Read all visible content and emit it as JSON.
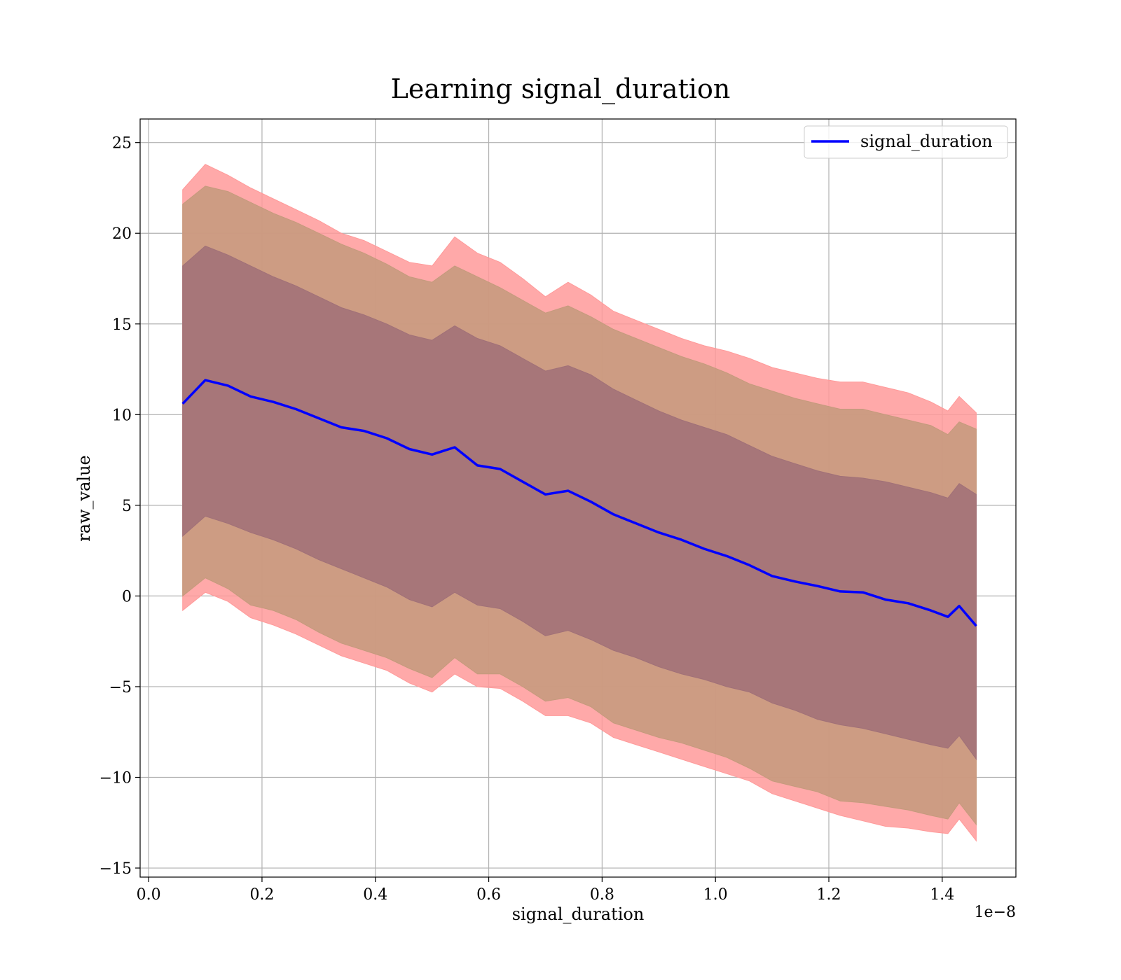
{
  "chart_data": {
    "type": "line",
    "title": "Learning signal_duration",
    "xlabel": "signal_duration",
    "ylabel": "raw_value",
    "x_offset_label": "1e−8",
    "xlim": [
      -1.5e-10,
      1.53e-08
    ],
    "ylim": [
      -15.5,
      26.3
    ],
    "x_ticks": [
      {
        "value": 0.0,
        "label": "0.0"
      },
      {
        "value": 2e-09,
        "label": "0.2"
      },
      {
        "value": 4e-09,
        "label": "0.4"
      },
      {
        "value": 6e-09,
        "label": "0.6"
      },
      {
        "value": 8e-09,
        "label": "0.8"
      },
      {
        "value": 1e-08,
        "label": "1.0"
      },
      {
        "value": 1.2e-08,
        "label": "1.2"
      },
      {
        "value": 1.4e-08,
        "label": "1.4"
      }
    ],
    "y_ticks": [
      {
        "value": 25,
        "label": "25"
      },
      {
        "value": 20,
        "label": "20"
      },
      {
        "value": 15,
        "label": "15"
      },
      {
        "value": 10,
        "label": "10"
      },
      {
        "value": 5,
        "label": "5"
      },
      {
        "value": 0,
        "label": "0"
      },
      {
        "value": -5,
        "label": "−5"
      },
      {
        "value": -10,
        "label": "−10"
      },
      {
        "value": -15,
        "label": "−15"
      }
    ],
    "grid": true,
    "legend": {
      "position": "top-right",
      "entries": [
        "signal_duration"
      ]
    },
    "colors": {
      "line": "#0000ff",
      "band_outer": "#ff9a9a",
      "band_middle": "#c49a7c",
      "band_inner": "#a07078"
    },
    "series": [
      {
        "name": "signal_duration",
        "x": [
          6e-10,
          1e-09,
          1.4e-09,
          1.8e-09,
          2.2e-09,
          2.6e-09,
          3e-09,
          3.4e-09,
          3.8e-09,
          4.2e-09,
          4.6e-09,
          5e-09,
          5.4e-09,
          5.8e-09,
          6.2e-09,
          6.6e-09,
          7e-09,
          7.4e-09,
          7.8e-09,
          8.2e-09,
          8.6e-09,
          9e-09,
          9.4e-09,
          9.8e-09,
          1.02e-08,
          1.06e-08,
          1.1e-08,
          1.14e-08,
          1.18e-08,
          1.22e-08,
          1.26e-08,
          1.3e-08,
          1.34e-08,
          1.38e-08,
          1.41e-08,
          1.43e-08,
          1.46e-08
        ],
        "y": [
          10.6,
          11.9,
          11.6,
          11.0,
          10.7,
          10.3,
          9.8,
          9.3,
          9.1,
          8.7,
          8.1,
          7.8,
          8.2,
          7.2,
          7.0,
          6.3,
          5.6,
          5.8,
          5.2,
          4.5,
          4.0,
          3.5,
          3.1,
          2.6,
          2.2,
          1.7,
          1.1,
          0.8,
          0.55,
          0.25,
          0.2,
          -0.2,
          -0.4,
          -0.8,
          -1.15,
          -0.55,
          -1.65
        ]
      }
    ],
    "bands": [
      {
        "level": "outer",
        "upper": [
          22.4,
          23.8,
          23.2,
          22.5,
          21.9,
          21.3,
          20.7,
          20.0,
          19.6,
          19.0,
          18.4,
          18.2,
          19.8,
          18.9,
          18.4,
          17.5,
          16.5,
          17.3,
          16.6,
          15.7,
          15.2,
          14.7,
          14.2,
          13.8,
          13.5,
          13.1,
          12.6,
          12.3,
          12.0,
          11.8,
          11.8,
          11.5,
          11.2,
          10.7,
          10.2,
          11.0,
          10.1
        ],
        "lower": [
          -0.8,
          0.2,
          -0.3,
          -1.2,
          -1.6,
          -2.1,
          -2.7,
          -3.3,
          -3.7,
          -4.1,
          -4.8,
          -5.3,
          -4.3,
          -5.0,
          -5.1,
          -5.8,
          -6.6,
          -6.6,
          -7.0,
          -7.8,
          -8.2,
          -8.6,
          -9.0,
          -9.4,
          -9.8,
          -10.2,
          -10.9,
          -11.3,
          -11.7,
          -12.1,
          -12.4,
          -12.7,
          -12.8,
          -13.0,
          -13.1,
          -12.3,
          -13.5
        ]
      },
      {
        "level": "middle",
        "upper": [
          21.6,
          22.6,
          22.3,
          21.7,
          21.1,
          20.6,
          20.0,
          19.4,
          18.9,
          18.3,
          17.6,
          17.3,
          18.2,
          17.6,
          17.0,
          16.3,
          15.6,
          16.0,
          15.4,
          14.7,
          14.2,
          13.7,
          13.2,
          12.8,
          12.3,
          11.7,
          11.3,
          10.9,
          10.6,
          10.3,
          10.3,
          10.0,
          9.7,
          9.4,
          8.9,
          9.6,
          9.2
        ],
        "lower": [
          0.0,
          1.0,
          0.4,
          -0.5,
          -0.8,
          -1.3,
          -2.0,
          -2.6,
          -3.0,
          -3.4,
          -4.0,
          -4.5,
          -3.4,
          -4.3,
          -4.3,
          -5.0,
          -5.8,
          -5.6,
          -6.1,
          -7.0,
          -7.4,
          -7.8,
          -8.1,
          -8.5,
          -8.9,
          -9.5,
          -10.2,
          -10.5,
          -10.8,
          -11.3,
          -11.4,
          -11.6,
          -11.8,
          -12.1,
          -12.3,
          -11.4,
          -12.6
        ]
      },
      {
        "level": "inner",
        "upper": [
          18.2,
          19.3,
          18.8,
          18.2,
          17.6,
          17.1,
          16.5,
          15.9,
          15.5,
          15.0,
          14.4,
          14.1,
          14.9,
          14.2,
          13.8,
          13.1,
          12.4,
          12.7,
          12.2,
          11.4,
          10.8,
          10.2,
          9.7,
          9.3,
          8.9,
          8.3,
          7.7,
          7.3,
          6.9,
          6.6,
          6.5,
          6.3,
          6.0,
          5.7,
          5.4,
          6.2,
          5.6
        ],
        "lower": [
          3.3,
          4.4,
          4.0,
          3.5,
          3.1,
          2.6,
          2.0,
          1.5,
          1.0,
          0.5,
          -0.2,
          -0.6,
          0.2,
          -0.5,
          -0.7,
          -1.4,
          -2.2,
          -1.9,
          -2.4,
          -3.0,
          -3.4,
          -3.9,
          -4.3,
          -4.6,
          -5.0,
          -5.3,
          -5.9,
          -6.3,
          -6.8,
          -7.1,
          -7.3,
          -7.6,
          -7.9,
          -8.2,
          -8.4,
          -7.7,
          -9.0
        ]
      }
    ]
  }
}
